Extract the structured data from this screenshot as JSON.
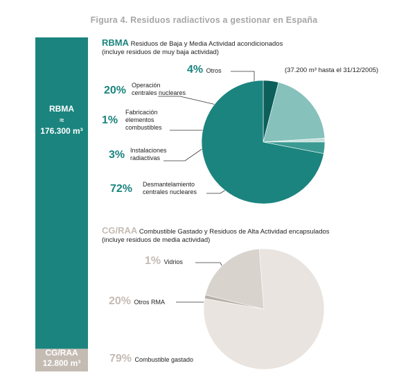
{
  "figure_title": "Figura 4. Residuos radiactivos a gestionar en España",
  "colors": {
    "teal": "#1b847e",
    "teal_dark": "#0c5f5a",
    "teal_mid": "#3b9a92",
    "teal_light": "#86c1bb",
    "teal_pale": "#c4e0dc",
    "grey_bar": "#c4bbb3",
    "beige": "#e9e4df",
    "beige_mid": "#d8d3cd",
    "beige_dark": "#b8b1aa",
    "title_grey": "#a6a6a6"
  },
  "side_bar": {
    "rbma_label": "RBMA",
    "approx": "≈",
    "rbma_value": "176.300 m³",
    "cg_label": "CG/RAA",
    "cg_value": "12.800 m³"
  },
  "rbma": {
    "acronym": "RBMA",
    "title": "Residuos de Baja y Media Actividad acondicionados",
    "subtitle": "(incluye residuos de muy baja actividad)",
    "note": "(37.200 m³ hasta el 31/12/2005)",
    "labels": {
      "otros": {
        "pct": "4%",
        "text": "Otros"
      },
      "operacion": {
        "pct": "20%",
        "line1": "Operación",
        "line2": "centrales nucleares"
      },
      "fabricacion": {
        "pct": "1%",
        "line1": "Fabricación",
        "line2": "elementos",
        "line3": "combustibles"
      },
      "instalaciones": {
        "pct": "3%",
        "line1": "Instalaciones",
        "line2": "radiactivas"
      },
      "desmantelamiento": {
        "pct": "72%",
        "line1": "Desmantelamiento",
        "line2": "centrales nucleares"
      }
    }
  },
  "cgraa": {
    "acronym": "CG/RAA",
    "title": "Combustible Gastado y Residuos de Alta Actividad encapsulados",
    "subtitle": "(incluye residuos de media actividad)",
    "labels": {
      "vidrios": {
        "pct": "1%",
        "text": "Vidrios"
      },
      "otros_rma": {
        "pct": "20%",
        "text": "Otros RMA"
      },
      "combustible": {
        "pct": "79%",
        "text": "Combustible gastado"
      }
    }
  },
  "chart_data": [
    {
      "type": "bar",
      "categories": [
        "RBMA",
        "CG/RAA"
      ],
      "values": [
        176300,
        12800
      ],
      "unit": "m³",
      "orientation": "stacked-vertical"
    },
    {
      "type": "pie",
      "title": "RBMA Residuos de Baja y Media Actividad acondicionados",
      "categories": [
        "Otros",
        "Operación centrales nucleares",
        "Fabricación elementos combustibles",
        "Instalaciones radiactivas",
        "Desmantelamiento centrales nucleares"
      ],
      "values": [
        4,
        20,
        1,
        3,
        72
      ],
      "colors": [
        "#0c5f5a",
        "#86c1bb",
        "#c4e0dc",
        "#3b9a92",
        "#1b847e"
      ]
    },
    {
      "type": "pie",
      "title": "CG/RAA Combustible Gastado y Residuos de Alta Actividad encapsulados",
      "categories": [
        "Vidrios",
        "Otros RMA",
        "Combustible gastado"
      ],
      "values": [
        1,
        20,
        79
      ],
      "colors": [
        "#b8b1aa",
        "#d8d3cd",
        "#e9e4df"
      ]
    }
  ]
}
